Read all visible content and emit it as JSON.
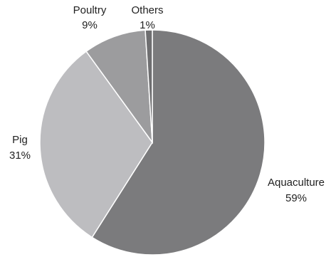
{
  "chart_data": {
    "type": "pie",
    "title": "",
    "labels": [
      "Aquaculture",
      "Pig",
      "Poultry",
      "Others"
    ],
    "values": [
      59,
      31,
      9,
      1
    ],
    "value_labels": [
      "59%",
      "31%",
      "9%",
      "1%"
    ],
    "colors": [
      "#7b7b7d",
      "#bdbdc0",
      "#9c9c9e",
      "#6f6f71"
    ],
    "start_angle_deg": 0,
    "direction": "clockwise",
    "legend": "none"
  }
}
